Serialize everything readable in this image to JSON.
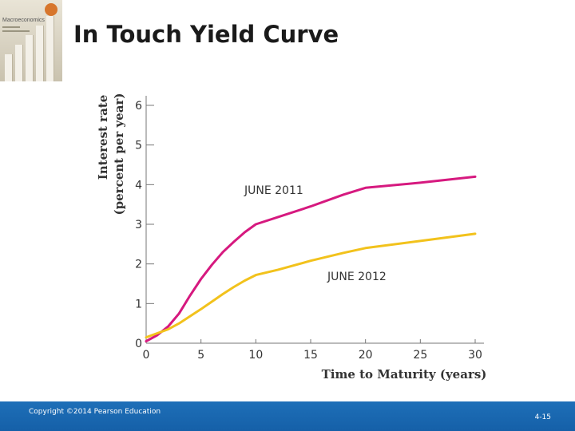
{
  "slide": {
    "title": "In Touch Yield Curve",
    "copyright": "Copyright ©2014 Pearson Education",
    "page_number": "4-15"
  },
  "book_cover": {
    "title": "Macroeconomics",
    "accent_color": "#d7762c"
  },
  "colors": {
    "footer": "#1560a8",
    "series_2011": "#d6197f",
    "series_2012": "#f2c21c"
  },
  "chart_data": {
    "type": "line",
    "xlabel": "Time to Maturity (years)",
    "ylabel": [
      "Interest rate",
      "(percent per year)"
    ],
    "xlim": [
      0,
      30
    ],
    "ylim": [
      0,
      6
    ],
    "xticks": [
      0,
      5,
      10,
      15,
      20,
      25,
      30
    ],
    "yticks": [
      0,
      1,
      2,
      3,
      4,
      5,
      6
    ],
    "grid": false,
    "series": [
      {
        "name": "JUNE 2011",
        "color": "#d6197f",
        "x": [
          0,
          1,
          2,
          3,
          4,
          5,
          6,
          7,
          8,
          9,
          10,
          12,
          15,
          18,
          20,
          25,
          30
        ],
        "y": [
          0.05,
          0.2,
          0.42,
          0.75,
          1.2,
          1.62,
          1.98,
          2.3,
          2.56,
          2.8,
          3.0,
          3.18,
          3.45,
          3.75,
          3.92,
          4.05,
          4.2
        ]
      },
      {
        "name": "JUNE 2012",
        "color": "#f2c21c",
        "x": [
          0,
          1,
          2,
          3,
          4,
          5,
          6,
          7,
          8,
          9,
          10,
          12,
          15,
          18,
          20,
          25,
          30
        ],
        "y": [
          0.15,
          0.25,
          0.35,
          0.5,
          0.68,
          0.86,
          1.05,
          1.24,
          1.42,
          1.58,
          1.72,
          1.85,
          2.08,
          2.28,
          2.4,
          2.58,
          2.76
        ]
      }
    ]
  }
}
